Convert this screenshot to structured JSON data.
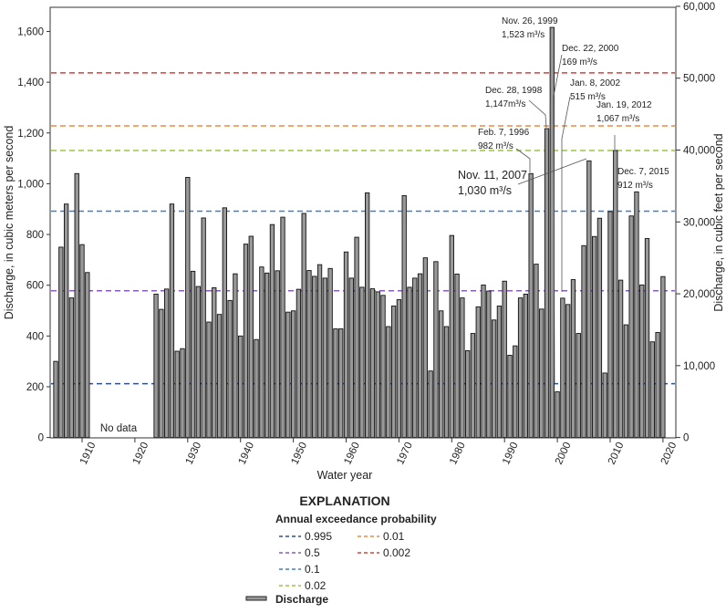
{
  "chart_data": {
    "type": "bar",
    "title": "",
    "xlabel": "Water year",
    "ylabel": "Discharge, in cubic meters per second",
    "ylabel_right": "Discharge, in cubic feet per second",
    "ylim": [
      0,
      1700
    ],
    "ylim_right": [
      0,
      60000
    ],
    "x_ticks": [
      "1910",
      "1920",
      "1930",
      "1940",
      "1950",
      "1960",
      "1970",
      "1980",
      "1990",
      "2000",
      "2010",
      "2020"
    ],
    "y_ticks": [
      "0",
      "200",
      "400",
      "600",
      "800",
      "1,000",
      "1,200",
      "1,400",
      "1,600"
    ],
    "y_ticks_right": [
      "0",
      "10,000",
      "20,000",
      "30,000",
      "40,000",
      "50,000",
      "60,000"
    ],
    "gap_label": "No data",
    "grid": false,
    "bar_color": "#999999",
    "series": [
      {
        "name": "Discharge",
        "x": [
          1905,
          1906,
          1907,
          1908,
          1909,
          1910,
          1911,
          1924,
          1925,
          1926,
          1927,
          1928,
          1929,
          1930,
          1931,
          1932,
          1933,
          1934,
          1935,
          1936,
          1937,
          1938,
          1939,
          1940,
          1941,
          1942,
          1943,
          1944,
          1945,
          1946,
          1947,
          1948,
          1949,
          1950,
          1951,
          1952,
          1953,
          1954,
          1955,
          1956,
          1957,
          1958,
          1959,
          1960,
          1961,
          1962,
          1963,
          1964,
          1965,
          1966,
          1967,
          1968,
          1969,
          1970,
          1971,
          1972,
          1973,
          1974,
          1975,
          1976,
          1977,
          1978,
          1979,
          1980,
          1981,
          1982,
          1983,
          1984,
          1985,
          1986,
          1987,
          1988,
          1989,
          1990,
          1991,
          1992,
          1993,
          1994,
          1995,
          1996,
          1997,
          1998,
          1999,
          2000,
          2001,
          2002,
          2003,
          2004,
          2005,
          2006,
          2007,
          2008,
          2009,
          2010,
          2011,
          2012,
          2013,
          2014,
          2015,
          2016,
          2017,
          2018,
          2019,
          2020
        ],
        "values": [
          300,
          750,
          920,
          550,
          1040,
          760,
          650,
          565,
          505,
          585,
          920,
          340,
          350,
          1025,
          655,
          595,
          865,
          455,
          590,
          485,
          905,
          540,
          645,
          400,
          762,
          793,
          386,
          672,
          648,
          839,
          657,
          868,
          494,
          499,
          584,
          883,
          658,
          635,
          681,
          628,
          666,
          428,
          428,
          731,
          628,
          789,
          592,
          964,
          586,
          574,
          560,
          437,
          518,
          543,
          953,
          592,
          628,
          645,
          708,
          262,
          693,
          499,
          437,
          796,
          644,
          550,
          342,
          410,
          515,
          601,
          577,
          463,
          518,
          616,
          324,
          361,
          550,
          565,
          1040,
          683,
          506,
          1217,
          1616,
          180,
          549,
          524,
          622,
          410,
          756,
          1090,
          792,
          864,
          254,
          890,
          1131,
          620,
          444,
          873,
          968,
          601,
          784,
          377,
          414,
          634
        ]
      }
    ],
    "reference_lines": [
      {
        "label": "0.995",
        "value": 212,
        "color": "#2f4f8f"
      },
      {
        "label": "0.5",
        "value": 578,
        "color": "#8a5cc0"
      },
      {
        "label": "0.1",
        "value": 892,
        "color": "#3d7fd0"
      },
      {
        "label": "0.02",
        "value": 1131,
        "color": "#9cc53d"
      },
      {
        "label": "0.01",
        "value": 1228,
        "color": "#f08a3a"
      },
      {
        "label": "0.002",
        "value": 1437,
        "color": "#d9403a"
      }
    ],
    "annotations": [
      {
        "date": "Nov. 26, 1999",
        "value": "1,523 m³/s",
        "year": 1999
      },
      {
        "date": "Dec. 22, 2000",
        "value": "169 m³/s",
        "year": 2000
      },
      {
        "date": "Dec. 28, 1998",
        "value": "1,147m³/s",
        "year": 1998
      },
      {
        "date": "Jan. 8, 2002",
        "value": "515 m³/s",
        "year": 2001
      },
      {
        "date": "Jan. 19, 2012",
        "value": "1,067 m³/s",
        "year": 2011
      },
      {
        "date": "Feb. 7, 1996",
        "value": "982 m³/s",
        "year": 1995
      },
      {
        "date": "Nov. 11, 2007",
        "value": "1,030 m³/s",
        "year": 2006
      },
      {
        "date": "Dec. 7, 2015",
        "value": "912 m³/s",
        "year": 2015
      }
    ]
  },
  "legend": {
    "title": "EXPLANATION",
    "subtitle": "Annual exceedance probability",
    "discharge_label": "Discharge"
  }
}
